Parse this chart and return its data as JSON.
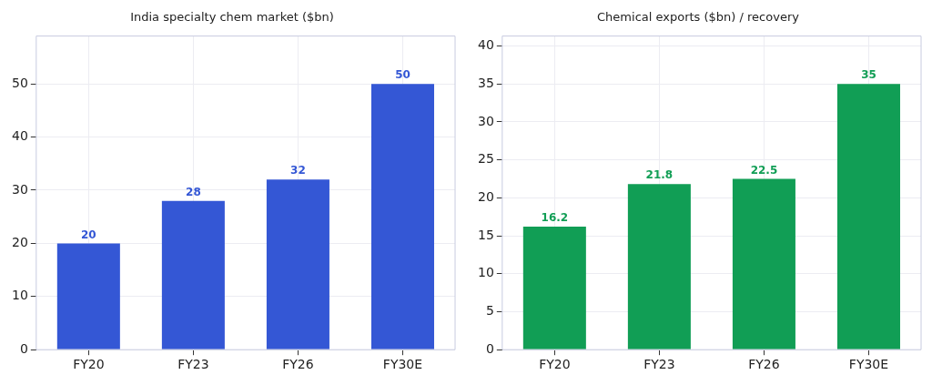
{
  "chart_data": [
    {
      "type": "bar",
      "title": "India specialty chem market ($bn)",
      "categories": [
        "FY20",
        "FY23",
        "FY26",
        "FY30E"
      ],
      "values": [
        20,
        28,
        32,
        50
      ],
      "color": "#3457d5",
      "ylim": [
        0,
        59
      ],
      "yticks": [
        0,
        10,
        20,
        30,
        40,
        50
      ],
      "grid": true,
      "data_labels": true
    },
    {
      "type": "bar",
      "title": "Chemical exports ($bn) / recovery",
      "categories": [
        "FY20",
        "FY23",
        "FY26",
        "FY30E"
      ],
      "values": [
        16.2,
        21.8,
        22.5,
        35
      ],
      "color": "#119e55",
      "ylim": [
        0,
        41.3
      ],
      "yticks": [
        0,
        5,
        10,
        15,
        20,
        25,
        30,
        35,
        40
      ],
      "grid": true,
      "data_labels": true
    }
  ]
}
